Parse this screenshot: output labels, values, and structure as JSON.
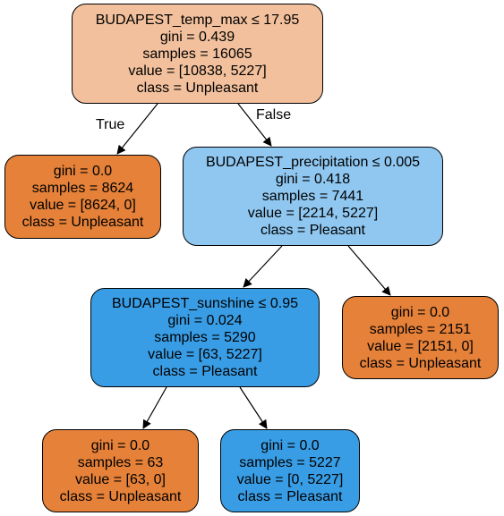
{
  "colors": {
    "root_fill": "#f2c09c",
    "unpleasant_fill": "#e58139",
    "pleasant_light_fill": "#8fc7f0",
    "pleasant_fill": "#399de5",
    "edge": "#000000"
  },
  "edges": {
    "true_label": "True",
    "false_label": "False"
  },
  "nodes": [
    {
      "id": "n0",
      "split": "BUDAPEST_temp_max ≤ 17.95",
      "gini": "gini = 0.439",
      "samples": "samples = 16065",
      "value": "value = [10838, 5227]",
      "class": "class = Unpleasant",
      "fill": "#f2c09c"
    },
    {
      "id": "n1",
      "gini": "gini = 0.0",
      "samples": "samples = 8624",
      "value": "value = [8624, 0]",
      "class": "class = Unpleasant",
      "fill": "#e58139"
    },
    {
      "id": "n2",
      "split": "BUDAPEST_precipitation ≤ 0.005",
      "gini": "gini = 0.418",
      "samples": "samples = 7441",
      "value": "value = [2214, 5227]",
      "class": "class = Pleasant",
      "fill": "#8fc7f0"
    },
    {
      "id": "n3",
      "split": "BUDAPEST_sunshine ≤ 0.95",
      "gini": "gini = 0.024",
      "samples": "samples = 5290",
      "value": "value = [63, 5227]",
      "class": "class = Pleasant",
      "fill": "#399de5"
    },
    {
      "id": "n4",
      "gini": "gini = 0.0",
      "samples": "samples = 2151",
      "value": "value = [2151, 0]",
      "class": "class = Unpleasant",
      "fill": "#e58139"
    },
    {
      "id": "n5",
      "gini": "gini = 0.0",
      "samples": "samples = 63",
      "value": "value = [63, 0]",
      "class": "class = Unpleasant",
      "fill": "#e58139"
    },
    {
      "id": "n6",
      "gini": "gini = 0.0",
      "samples": "samples = 5227",
      "value": "value = [0, 5227]",
      "class": "class = Pleasant",
      "fill": "#399de5"
    }
  ]
}
